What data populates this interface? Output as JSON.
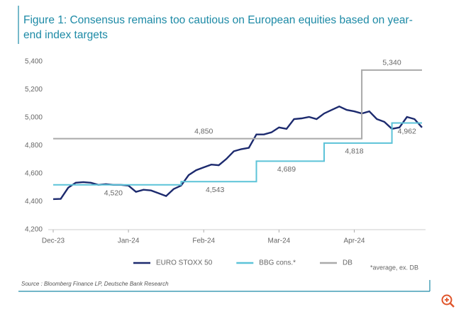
{
  "chart_data": {
    "type": "line",
    "title": "Figure 1: Consensus remains too cautious on European equities based on year-end index targets",
    "categories": [
      "Dec-23",
      null,
      null,
      null,
      null,
      null,
      null,
      null,
      null,
      null,
      "Jan-24",
      null,
      null,
      null,
      null,
      null,
      null,
      null,
      null,
      null,
      "Feb-24",
      null,
      null,
      null,
      null,
      null,
      null,
      null,
      null,
      null,
      "Mar-24",
      null,
      null,
      null,
      null,
      null,
      null,
      null,
      null,
      null,
      "Apr-24",
      null,
      null,
      null,
      null,
      null,
      null,
      null,
      null,
      null
    ],
    "series": [
      {
        "name": "EURO STOXX 50",
        "color": "#1c2a6e",
        "values": [
          4418,
          4420,
          4500,
          4535,
          4540,
          4535,
          4520,
          4525,
          4520,
          4520,
          4515,
          4470,
          4485,
          4480,
          4460,
          4440,
          4490,
          4515,
          4590,
          4625,
          4645,
          4665,
          4660,
          4705,
          4760,
          4775,
          4785,
          4880,
          4880,
          4895,
          4930,
          4920,
          4990,
          4995,
          5005,
          4990,
          5030,
          5055,
          5080,
          5055,
          5045,
          5030,
          5045,
          4990,
          4970,
          4920,
          4930,
          5005,
          4990,
          4930
        ]
      },
      {
        "name": "BBG cons.*",
        "color": "#5cc3d8",
        "step": true,
        "values": [
          4520,
          4520,
          4520,
          4520,
          4520,
          4520,
          4520,
          4520,
          4520,
          4520,
          4520,
          4520,
          4520,
          4520,
          4520,
          4520,
          4520,
          4543,
          4543,
          4543,
          4543,
          4543,
          4543,
          4543,
          4543,
          4543,
          4543,
          4689,
          4689,
          4689,
          4689,
          4689,
          4689,
          4689,
          4689,
          4689,
          4818,
          4818,
          4818,
          4818,
          4818,
          4818,
          4818,
          4818,
          4818,
          4962,
          4962,
          4962,
          4962,
          4962
        ],
        "level_labels": [
          {
            "value": 4520,
            "label": "4,520"
          },
          {
            "value": 4543,
            "label": "4,543"
          },
          {
            "value": 4689,
            "label": "4,689"
          },
          {
            "value": 4818,
            "label": "4,818"
          },
          {
            "value": 4962,
            "label": "4,962"
          }
        ]
      },
      {
        "name": "DB",
        "color": "#a9a9a9",
        "step": true,
        "values": [
          4850,
          4850,
          4850,
          4850,
          4850,
          4850,
          4850,
          4850,
          4850,
          4850,
          4850,
          4850,
          4850,
          4850,
          4850,
          4850,
          4850,
          4850,
          4850,
          4850,
          4850,
          4850,
          4850,
          4850,
          4850,
          4850,
          4850,
          4850,
          4850,
          4850,
          4850,
          4850,
          4850,
          4850,
          4850,
          4850,
          4850,
          4850,
          4850,
          4850,
          4850,
          5340,
          5340,
          5340,
          5340,
          5340,
          5340,
          5340,
          5340,
          5340
        ],
        "level_labels": [
          {
            "value": 4850,
            "label": "4,850"
          },
          {
            "value": 5340,
            "label": "5,340"
          }
        ]
      }
    ],
    "ylim": [
      4200,
      5400
    ],
    "yticks": [
      {
        "value": 4200,
        "label": "4,200"
      },
      {
        "value": 4400,
        "label": "4,400"
      },
      {
        "value": 4600,
        "label": "4,600"
      },
      {
        "value": 4800,
        "label": "4,800"
      },
      {
        "value": 5000,
        "label": "5,000"
      },
      {
        "value": 5200,
        "label": "5,200"
      },
      {
        "value": 5400,
        "label": "5,400"
      }
    ],
    "grid": false,
    "note": "*average, ex. DB",
    "source": "Source : Bloomberg Finance LP, Deutsche Bank Research"
  }
}
